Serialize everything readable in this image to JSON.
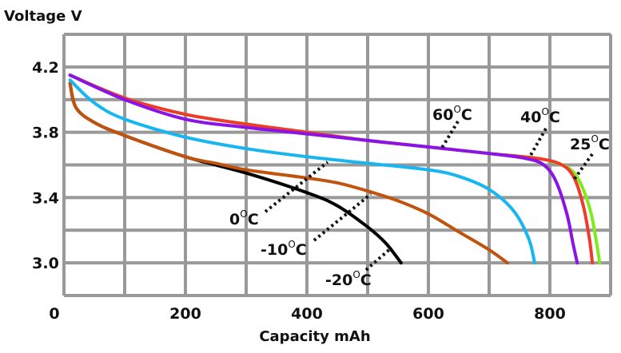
{
  "chart_data": {
    "type": "line",
    "title": "",
    "ylabel": "Voltage V",
    "xlabel": "Capacity mAh",
    "xlim": [
      0,
      900
    ],
    "ylim": [
      2.8,
      4.4
    ],
    "grid": true,
    "x_ticks": [
      {
        "value": 0,
        "label": "0"
      },
      {
        "value": 200,
        "label": "200"
      },
      {
        "value": 400,
        "label": "400"
      },
      {
        "value": 600,
        "label": "600"
      },
      {
        "value": 800,
        "label": "800"
      }
    ],
    "y_ticks": [
      {
        "value": 4.2,
        "label": "4.2"
      },
      {
        "value": 3.8,
        "label": "3.8"
      },
      {
        "value": 3.4,
        "label": "3.4"
      },
      {
        "value": 3.0,
        "label": "3.0"
      }
    ],
    "degree_mark": "O",
    "unit": "C",
    "series": [
      {
        "name": "-20",
        "color": "#000000",
        "points": [
          [
            10,
            4.1
          ],
          [
            20,
            3.95
          ],
          [
            50,
            3.86
          ],
          [
            100,
            3.78
          ],
          [
            200,
            3.65
          ],
          [
            300,
            3.55
          ],
          [
            400,
            3.43
          ],
          [
            450,
            3.35
          ],
          [
            500,
            3.22
          ],
          [
            530,
            3.12
          ],
          [
            555,
            3.0
          ]
        ]
      },
      {
        "name": "-10",
        "color": "#c0540f",
        "points": [
          [
            10,
            4.1
          ],
          [
            20,
            3.95
          ],
          [
            50,
            3.86
          ],
          [
            100,
            3.78
          ],
          [
            200,
            3.65
          ],
          [
            250,
            3.61
          ],
          [
            300,
            3.57
          ],
          [
            400,
            3.52
          ],
          [
            450,
            3.49
          ],
          [
            500,
            3.44
          ],
          [
            550,
            3.38
          ],
          [
            600,
            3.3
          ],
          [
            650,
            3.19
          ],
          [
            700,
            3.08
          ],
          [
            730,
            3.0
          ]
        ]
      },
      {
        "name": "0",
        "color": "#17b6f0",
        "points": [
          [
            10,
            4.12
          ],
          [
            50,
            3.98
          ],
          [
            100,
            3.88
          ],
          [
            200,
            3.77
          ],
          [
            300,
            3.7
          ],
          [
            400,
            3.65
          ],
          [
            500,
            3.61
          ],
          [
            600,
            3.57
          ],
          [
            650,
            3.53
          ],
          [
            700,
            3.45
          ],
          [
            740,
            3.32
          ],
          [
            765,
            3.15
          ],
          [
            775,
            3.0
          ]
        ]
      },
      {
        "name": "25",
        "color": "#7fea1c",
        "points": [
          [
            10,
            4.15
          ],
          [
            100,
            4.01
          ],
          [
            200,
            3.91
          ],
          [
            300,
            3.85
          ],
          [
            400,
            3.8
          ],
          [
            500,
            3.75
          ],
          [
            600,
            3.71
          ],
          [
            700,
            3.67
          ],
          [
            780,
            3.64
          ],
          [
            820,
            3.6
          ],
          [
            840,
            3.55
          ],
          [
            855,
            3.45
          ],
          [
            868,
            3.3
          ],
          [
            877,
            3.12
          ],
          [
            882,
            3.0
          ]
        ]
      },
      {
        "name": "60",
        "color": "#ef3b2c",
        "points": [
          [
            10,
            4.15
          ],
          [
            100,
            4.01
          ],
          [
            200,
            3.91
          ],
          [
            300,
            3.85
          ],
          [
            400,
            3.8
          ],
          [
            500,
            3.75
          ],
          [
            600,
            3.71
          ],
          [
            700,
            3.67
          ],
          [
            780,
            3.64
          ],
          [
            820,
            3.6
          ],
          [
            840,
            3.52
          ],
          [
            855,
            3.35
          ],
          [
            865,
            3.15
          ],
          [
            870,
            3.0
          ]
        ]
      },
      {
        "name": "40",
        "color": "#8a14e8",
        "points": [
          [
            10,
            4.15
          ],
          [
            100,
            4.0
          ],
          [
            200,
            3.88
          ],
          [
            300,
            3.83
          ],
          [
            400,
            3.79
          ],
          [
            500,
            3.75
          ],
          [
            600,
            3.71
          ],
          [
            700,
            3.67
          ],
          [
            760,
            3.64
          ],
          [
            790,
            3.6
          ],
          [
            810,
            3.5
          ],
          [
            828,
            3.3
          ],
          [
            838,
            3.12
          ],
          [
            845,
            3.0
          ]
        ]
      }
    ]
  }
}
